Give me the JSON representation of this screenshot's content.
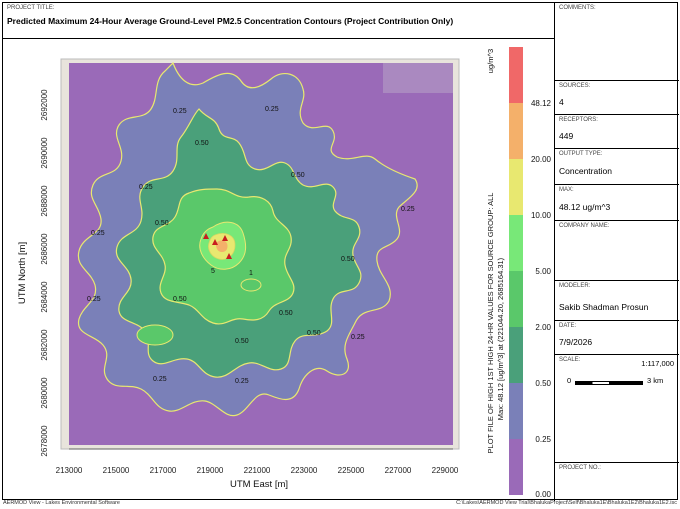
{
  "project_title": {
    "label": "PROJECT TITLE:",
    "value": "Predicted Maximum 24-Hour Average Ground-Level PM2.5 Concentration Contours (Project Contribution Only)"
  },
  "side_panel": {
    "comments": {
      "label": "COMMENTS:",
      "value": ""
    },
    "sources": {
      "label": "SOURCES:",
      "value": "4"
    },
    "receptors": {
      "label": "RECEPTORS:",
      "value": "449"
    },
    "output_type": {
      "label": "OUTPUT TYPE:",
      "value": "Concentration"
    },
    "max": {
      "label": "MAX:",
      "value": "48.12 ug/m^3"
    },
    "company_name": {
      "label": "COMPANY NAME:",
      "value": ""
    },
    "modeler": {
      "label": "MODELER:",
      "value": "Sakib Shadman Prosun"
    },
    "date": {
      "label": "DATE:",
      "value": "7/9/2026"
    },
    "scale": {
      "label": "SCALE:",
      "ratio": "1:117,000",
      "zero": "0",
      "distance": "3 km"
    },
    "project_no": {
      "label": "PROJECT NO.:",
      "value": ""
    }
  },
  "status_bar": {
    "left": "AERMOD View - Lakes Environmental Software",
    "right": "C:\\Lakes\\AERMOD View Trial\\BhalukaProject\\Self\\Bhaluka1E\\Bhaluka1E2\\Bhaluka1E2.isc"
  },
  "plot": {
    "xlabel": "UTM East [m]",
    "ylabel": "UTM North [m]",
    "x_ticks": [
      "213000",
      "215000",
      "217000",
      "219000",
      "221000",
      "223000",
      "225000",
      "227000",
      "229000"
    ],
    "y_ticks": [
      "2692000",
      "2690000",
      "2688000",
      "2686000",
      "2684000",
      "2682000",
      "2680000",
      "2678000"
    ],
    "side_text_1": "PLOT FILE OF HIGH 1ST HIGH 24-HR VALUES FOR SOURCE GROUP: ALL",
    "side_text_2": "Max: 48.12 [ug/m^3]  at (221044.20, 2685164.31)",
    "contour_labels": [
      "0.25",
      "0.50",
      "5",
      "1"
    ],
    "legend": {
      "unit": "ug/m^3",
      "levels": [
        "0.00",
        "0.25",
        "0.50",
        "2.00",
        "5.00",
        "10.00",
        "20.00",
        "48.12"
      ],
      "colors": [
        "#9a6ab8",
        "#7a80b8",
        "#4aa07a",
        "#5ac86a",
        "#78e878",
        "#e8e870",
        "#f4b06a",
        "#f06868"
      ]
    }
  },
  "chart_data": {
    "type": "heatmap",
    "title": "Predicted Maximum 24-Hour Average Ground-Level PM2.5 Concentration Contours (Project Contribution Only)",
    "xlabel": "UTM East [m]",
    "ylabel": "UTM North [m]",
    "x_range": [
      212000,
      230000
    ],
    "y_range": [
      2676500,
      2693500
    ],
    "x_ticks": [
      213000,
      215000,
      217000,
      219000,
      221000,
      223000,
      225000,
      227000,
      229000
    ],
    "y_ticks": [
      2678000,
      2680000,
      2682000,
      2684000,
      2686000,
      2688000,
      2690000,
      2692000
    ],
    "contour_levels": [
      0.0,
      0.25,
      0.5,
      2.0,
      5.0,
      10.0,
      20.0,
      48.12
    ],
    "max_value": 48.12,
    "max_location": [
      221044.2,
      2685164.31
    ],
    "unit": "ug/m^3"
  }
}
